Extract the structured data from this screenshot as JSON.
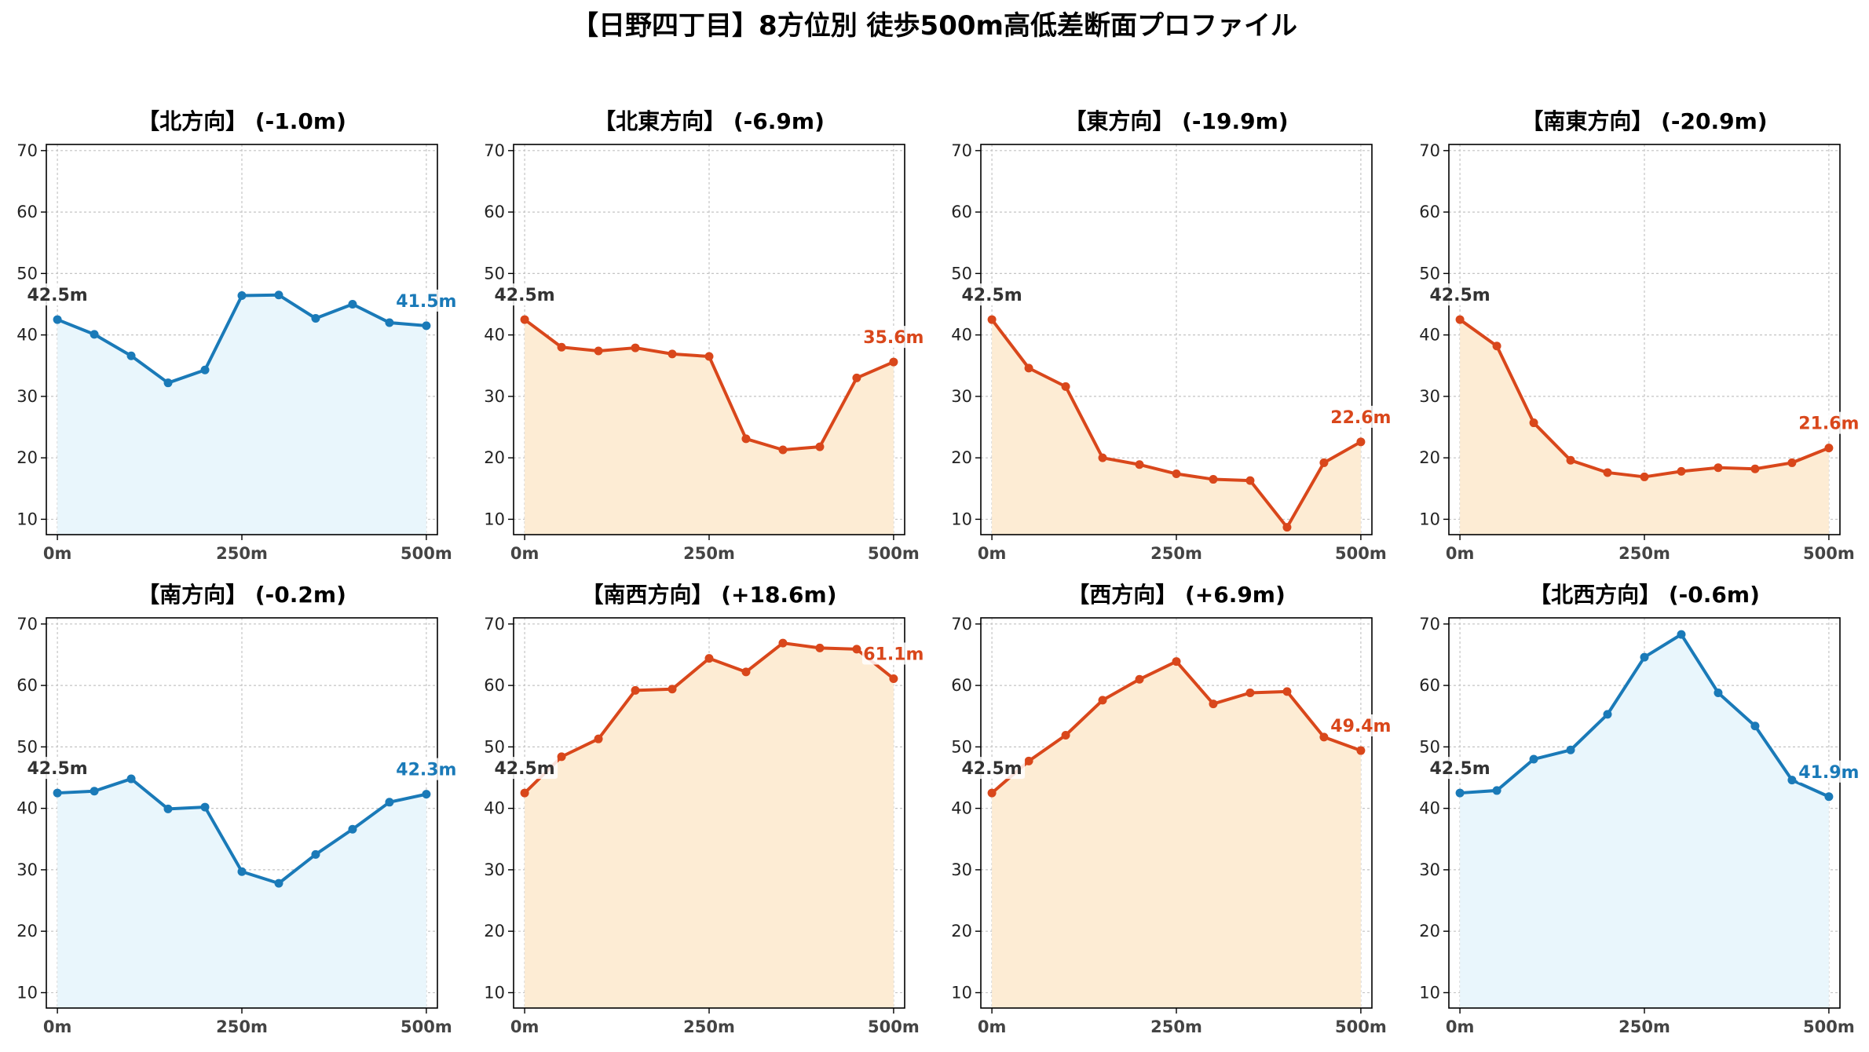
{
  "figure": {
    "title": "【日野四丁目】8方位別 徒歩500m高低差断面プロファイル"
  },
  "colors": {
    "downhill_line": "#1a7ab8",
    "downhill_fill": "#e9f6fc",
    "uphill_line": "#d9471b",
    "uphill_fill": "#fdecd4",
    "start_label": "#333333"
  },
  "chart_data": [
    {
      "type": "area",
      "title": "【北方向】 (-1.0m)",
      "style": "downhill",
      "x": [
        0,
        50,
        100,
        150,
        200,
        250,
        300,
        350,
        400,
        450,
        500
      ],
      "y": [
        42.5,
        40.1,
        36.6,
        32.2,
        34.3,
        46.4,
        46.5,
        42.7,
        45.0,
        42.0,
        41.5
      ],
      "start_label": "42.5m",
      "end_label": "41.5m",
      "ylim": [
        7.5,
        71
      ],
      "yticks": [
        10,
        20,
        30,
        40,
        50,
        60,
        70
      ],
      "xticks": [
        0,
        250,
        500
      ],
      "xticklabels": [
        "0m",
        "250m",
        "500m"
      ],
      "grid": true
    },
    {
      "type": "area",
      "title": "【北東方向】 (-6.9m)",
      "style": "uphill",
      "x": [
        0,
        50,
        100,
        150,
        200,
        250,
        300,
        350,
        400,
        450,
        500
      ],
      "y": [
        42.5,
        38.0,
        37.4,
        37.9,
        36.9,
        36.5,
        23.1,
        21.3,
        21.8,
        33.0,
        35.6
      ],
      "start_label": "42.5m",
      "end_label": "35.6m",
      "ylim": [
        7.5,
        71
      ],
      "yticks": [
        10,
        20,
        30,
        40,
        50,
        60,
        70
      ],
      "xticks": [
        0,
        250,
        500
      ],
      "xticklabels": [
        "0m",
        "250m",
        "500m"
      ],
      "grid": true
    },
    {
      "type": "area",
      "title": "【東方向】 (-19.9m)",
      "style": "uphill",
      "x": [
        0,
        50,
        100,
        150,
        200,
        250,
        300,
        350,
        400,
        450,
        500
      ],
      "y": [
        42.5,
        34.6,
        31.6,
        20.0,
        18.9,
        17.4,
        16.5,
        16.3,
        8.7,
        19.2,
        22.6
      ],
      "start_label": "42.5m",
      "end_label": "22.6m",
      "ylim": [
        7.5,
        71
      ],
      "yticks": [
        10,
        20,
        30,
        40,
        50,
        60,
        70
      ],
      "xticks": [
        0,
        250,
        500
      ],
      "xticklabels": [
        "0m",
        "250m",
        "500m"
      ],
      "grid": true
    },
    {
      "type": "area",
      "title": "【南東方向】 (-20.9m)",
      "style": "uphill",
      "x": [
        0,
        50,
        100,
        150,
        200,
        250,
        300,
        350,
        400,
        450,
        500
      ],
      "y": [
        42.5,
        38.2,
        25.7,
        19.6,
        17.6,
        16.9,
        17.8,
        18.4,
        18.2,
        19.2,
        21.6
      ],
      "start_label": "42.5m",
      "end_label": "21.6m",
      "ylim": [
        7.5,
        71
      ],
      "yticks": [
        10,
        20,
        30,
        40,
        50,
        60,
        70
      ],
      "xticks": [
        0,
        250,
        500
      ],
      "xticklabels": [
        "0m",
        "250m",
        "500m"
      ],
      "grid": true
    },
    {
      "type": "area",
      "title": "【南方向】 (-0.2m)",
      "style": "downhill",
      "x": [
        0,
        50,
        100,
        150,
        200,
        250,
        300,
        350,
        400,
        450,
        500
      ],
      "y": [
        42.5,
        42.8,
        44.8,
        39.9,
        40.2,
        29.7,
        27.8,
        32.5,
        36.6,
        41.0,
        42.3
      ],
      "start_label": "42.5m",
      "end_label": "42.3m",
      "ylim": [
        7.5,
        71
      ],
      "yticks": [
        10,
        20,
        30,
        40,
        50,
        60,
        70
      ],
      "xticks": [
        0,
        250,
        500
      ],
      "xticklabels": [
        "0m",
        "250m",
        "500m"
      ],
      "grid": true
    },
    {
      "type": "area",
      "title": "【南西方向】 (+18.6m)",
      "style": "uphill",
      "x": [
        0,
        50,
        100,
        150,
        200,
        250,
        300,
        350,
        400,
        450,
        500
      ],
      "y": [
        42.5,
        48.4,
        51.3,
        59.2,
        59.4,
        64.4,
        62.2,
        66.9,
        66.1,
        65.9,
        61.1
      ],
      "start_label": "42.5m",
      "end_label": "61.1m",
      "ylim": [
        7.5,
        71
      ],
      "yticks": [
        10,
        20,
        30,
        40,
        50,
        60,
        70
      ],
      "xticks": [
        0,
        250,
        500
      ],
      "xticklabels": [
        "0m",
        "250m",
        "500m"
      ],
      "grid": true
    },
    {
      "type": "area",
      "title": "【西方向】 (+6.9m)",
      "style": "uphill",
      "x": [
        0,
        50,
        100,
        150,
        200,
        250,
        300,
        350,
        400,
        450,
        500
      ],
      "y": [
        42.5,
        47.7,
        51.9,
        57.6,
        61.0,
        63.9,
        57.0,
        58.8,
        59.0,
        51.6,
        49.4
      ],
      "start_label": "42.5m",
      "end_label": "49.4m",
      "ylim": [
        7.5,
        71
      ],
      "yticks": [
        10,
        20,
        30,
        40,
        50,
        60,
        70
      ],
      "xticks": [
        0,
        250,
        500
      ],
      "xticklabels": [
        "0m",
        "250m",
        "500m"
      ],
      "grid": true
    },
    {
      "type": "area",
      "title": "【北西方向】 (-0.6m)",
      "style": "downhill",
      "x": [
        0,
        50,
        100,
        150,
        200,
        250,
        300,
        350,
        400,
        450,
        500
      ],
      "y": [
        42.5,
        42.9,
        48.0,
        49.5,
        55.3,
        64.6,
        68.3,
        58.8,
        53.4,
        44.6,
        41.9
      ],
      "start_label": "42.5m",
      "end_label": "41.9m",
      "ylim": [
        7.5,
        71
      ],
      "yticks": [
        10,
        20,
        30,
        40,
        50,
        60,
        70
      ],
      "xticks": [
        0,
        250,
        500
      ],
      "xticklabels": [
        "0m",
        "250m",
        "500m"
      ],
      "grid": true
    }
  ]
}
